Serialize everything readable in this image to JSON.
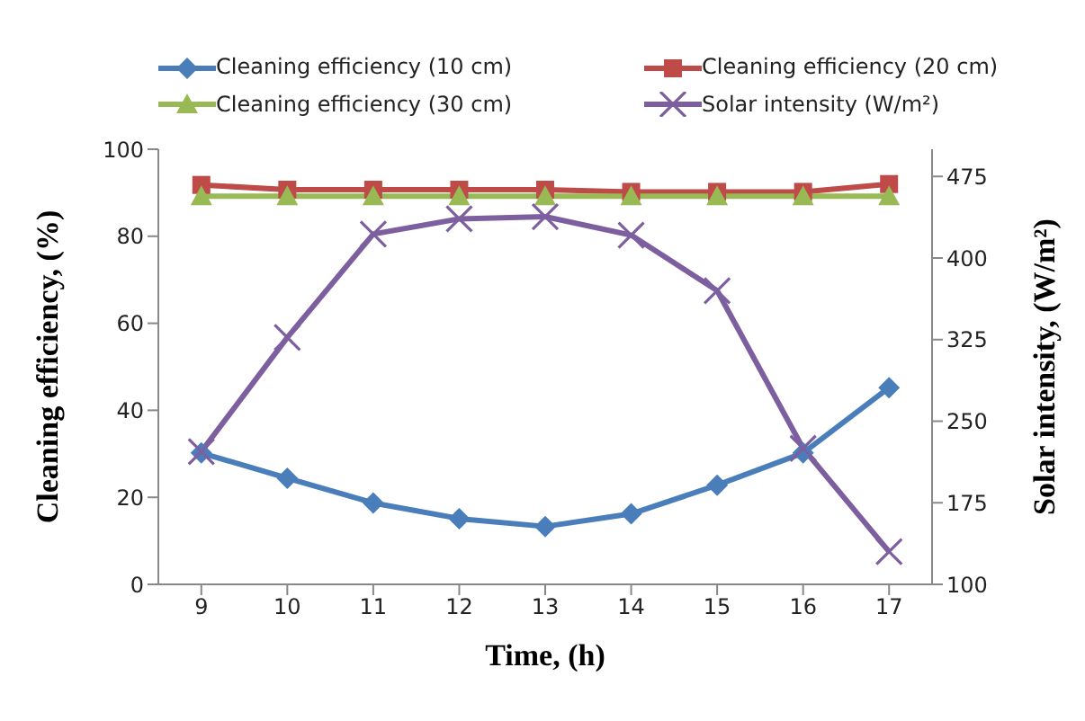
{
  "chart_data": {
    "type": "line",
    "xlabel": "Time, (h)",
    "ylabel": "Cleaning efficiency, (%)",
    "y2label": "Solar intensity, (W/m²)",
    "x": [
      9,
      10,
      11,
      12,
      13,
      14,
      15,
      16,
      17
    ],
    "xlim": [
      8.5,
      17.5
    ],
    "xticks": [
      9,
      10,
      11,
      12,
      13,
      14,
      15,
      16,
      17
    ],
    "ylim": [
      0,
      100
    ],
    "yticks": [
      0,
      20,
      40,
      60,
      80,
      100
    ],
    "y2lim": [
      100,
      500
    ],
    "y2ticks": [
      100,
      175,
      250,
      325,
      400,
      475
    ],
    "legend": "top",
    "grid": false,
    "series": [
      {
        "name": "Cleaning efficiency (10 cm)",
        "color": "#4a7ebb",
        "marker": "diamond",
        "values": [
          30.2,
          24.4,
          18.7,
          15.1,
          13.3,
          16.2,
          22.8,
          30.2,
          45.2
        ]
      },
      {
        "name": "Cleaning efficiency (20 cm)",
        "color": "#be4b48",
        "marker": "square",
        "values": [
          91.8,
          90.7,
          90.7,
          90.7,
          90.7,
          90.2,
          90.2,
          90.2,
          92
        ]
      },
      {
        "name": "Cleaning efficiency (30 cm)",
        "color": "#98b954",
        "marker": "triangle",
        "values": [
          89.2,
          89.2,
          89.2,
          89.2,
          89.2,
          89.2,
          89.2,
          89.2,
          89.2
        ]
      },
      {
        "name": "Solar intensity (W/m²)",
        "color": "#7d5fa0",
        "marker": "cross",
        "axis": "y2",
        "values": [
          222,
          327,
          422,
          436,
          438,
          421,
          370,
          225,
          130
        ]
      }
    ]
  }
}
